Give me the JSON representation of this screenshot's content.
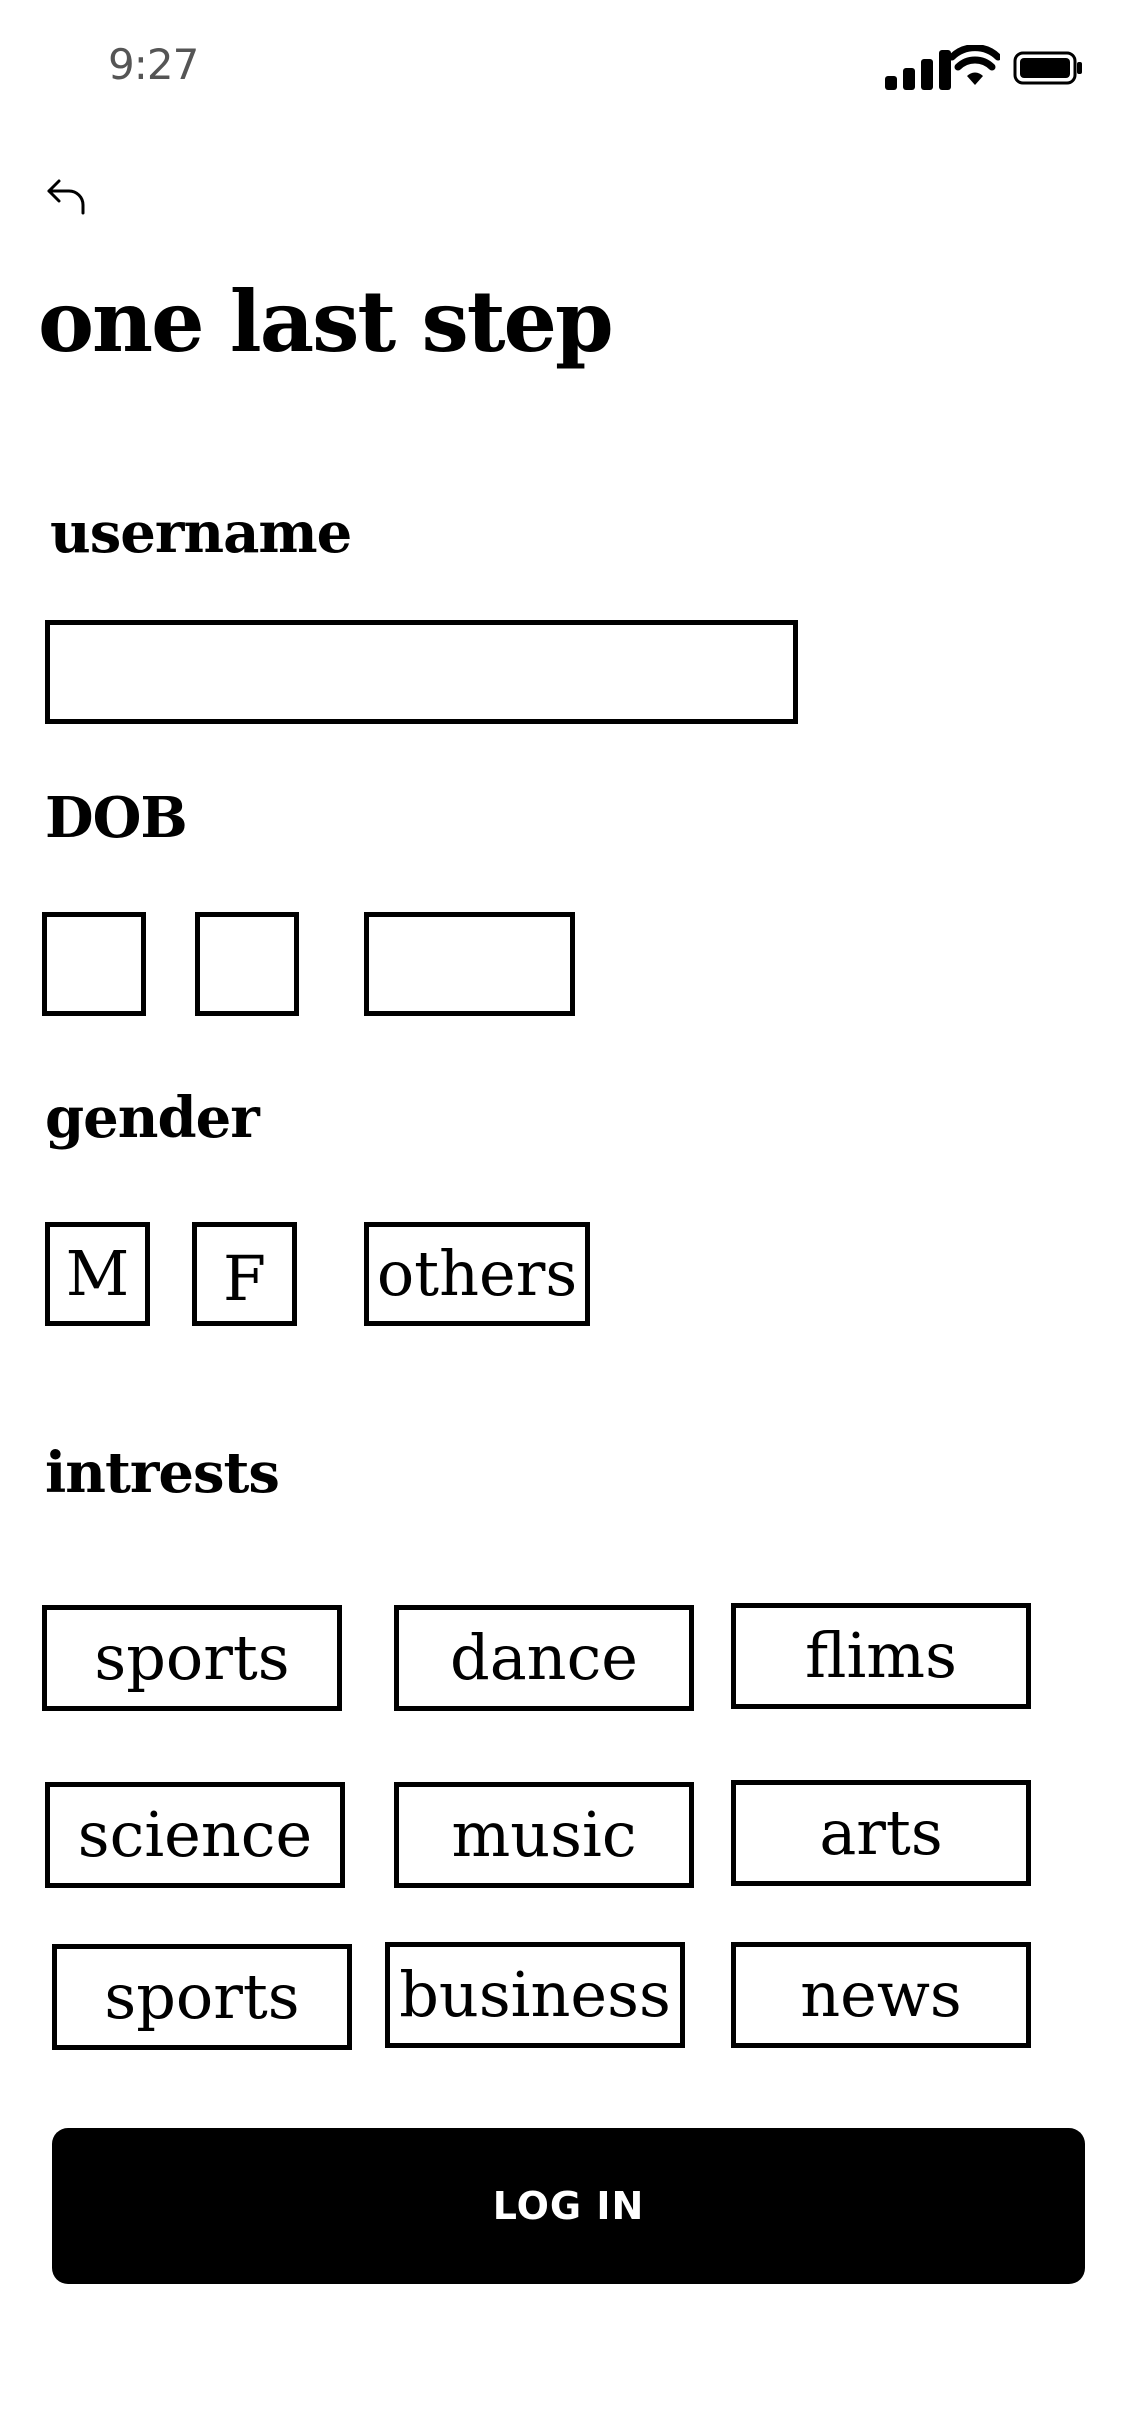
{
  "status_bar": {
    "time": "9:27"
  },
  "page": {
    "title": "one last step"
  },
  "username": {
    "label": "username",
    "value": "",
    "placeholder": ""
  },
  "dob": {
    "label": "DOB",
    "day": "",
    "month": "",
    "year": ""
  },
  "gender": {
    "label": "gender",
    "options": [
      "M",
      "F",
      "others"
    ]
  },
  "interests": {
    "label": "intrests",
    "items": [
      "sports",
      "dance",
      "flims",
      "science",
      "music",
      "arts",
      "sports",
      "business",
      "news"
    ]
  },
  "login_button": {
    "label": "LOG IN"
  },
  "icons": {
    "back": "back-arrow-icon",
    "signal": "cellular-signal-icon",
    "wifi": "wifi-icon",
    "battery": "battery-icon"
  }
}
